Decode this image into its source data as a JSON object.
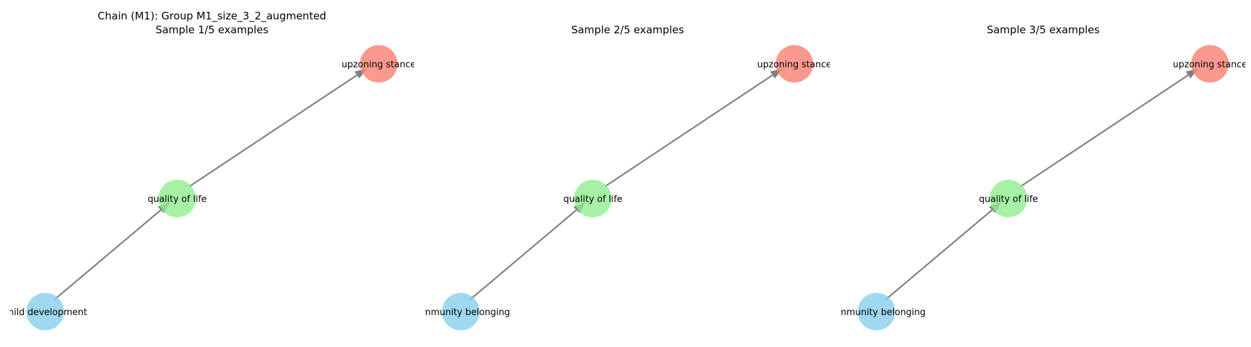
{
  "figure": {
    "main_title": "Chain (M1): Group M1_size_3_2_augmented",
    "panels": [
      {
        "title": "Sample 1/5 examples",
        "nodes": {
          "source": {
            "label": "child development",
            "color": "#87ceeb"
          },
          "mediator": {
            "label": "quality of life",
            "color": "#90ee90"
          },
          "target": {
            "label": "upzoning stance",
            "color": "#fa8072"
          }
        }
      },
      {
        "title": "Sample 2/5 examples",
        "nodes": {
          "source": {
            "label": "community belonging",
            "color": "#87ceeb"
          },
          "mediator": {
            "label": "quality of life",
            "color": "#90ee90"
          },
          "target": {
            "label": "upzoning stance",
            "color": "#fa8072"
          }
        }
      },
      {
        "title": "Sample 3/5 examples",
        "nodes": {
          "source": {
            "label": "community belonging",
            "color": "#87ceeb"
          },
          "mediator": {
            "label": "quality of life",
            "color": "#90ee90"
          },
          "target": {
            "label": "upzoning stance",
            "color": "#fa8072"
          }
        }
      }
    ]
  }
}
